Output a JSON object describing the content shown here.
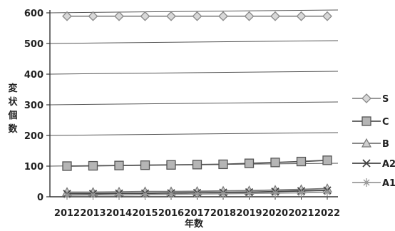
{
  "chart_data": {
    "type": "line",
    "xlabel": "年数",
    "ylabel": "変状個数",
    "ylim": [
      0,
      600
    ],
    "yticks": [
      0,
      100,
      200,
      300,
      400,
      500,
      600
    ],
    "categories": [
      "2012",
      "2013",
      "2014",
      "2015",
      "2016",
      "2017",
      "2018",
      "2019",
      "2020",
      "2021",
      "2022"
    ],
    "grid": "horizontal",
    "legend_position": "right",
    "series": [
      {
        "name": "S",
        "marker": "diamond",
        "color": "#8a8a8a",
        "values": [
          589,
          589,
          589,
          589,
          589,
          589,
          589,
          589,
          589,
          589,
          589
        ]
      },
      {
        "name": "C",
        "marker": "square",
        "color": "#555555",
        "values": [
          100,
          101,
          102,
          103,
          104,
          105,
          106,
          109,
          112,
          115,
          119
        ]
      },
      {
        "name": "B",
        "marker": "triangle",
        "color": "#777777",
        "values": [
          15,
          15,
          16,
          17,
          17,
          18,
          19,
          20,
          22,
          24,
          27
        ]
      },
      {
        "name": "A2",
        "marker": "x",
        "color": "#444444",
        "values": [
          10,
          10,
          11,
          11,
          12,
          13,
          14,
          15,
          17,
          19,
          21
        ]
      },
      {
        "name": "A1",
        "marker": "star",
        "color": "#999999",
        "values": [
          5,
          6,
          6,
          7,
          8,
          9,
          10,
          11,
          12,
          13,
          15
        ]
      }
    ]
  }
}
